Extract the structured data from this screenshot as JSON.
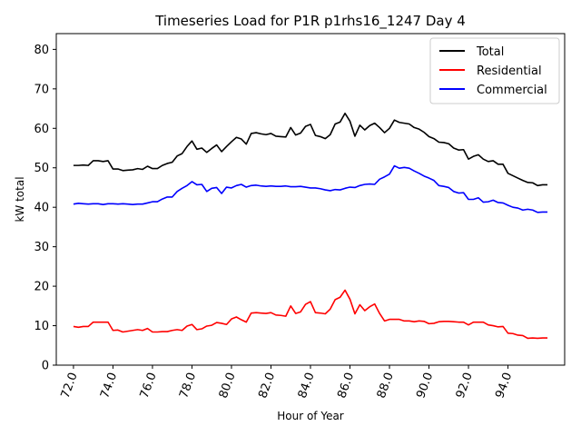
{
  "chart_data": {
    "type": "line",
    "title": "Timeseries Load for P1R p1rhs16_1247  Day 4",
    "xlabel": "Hour of Year",
    "ylabel": "kW total",
    "xlim": [
      71.13,
      96.87
    ],
    "ylim": [
      0,
      84
    ],
    "x_ticks": [
      72,
      74,
      76,
      78,
      80,
      82,
      84,
      86,
      88,
      90,
      92,
      94
    ],
    "x_tick_labels": [
      "72.0",
      "74.0",
      "76.0",
      "78.0",
      "80.0",
      "82.0",
      "84.0",
      "86.0",
      "88.0",
      "90.0",
      "92.0",
      "94.0"
    ],
    "y_ticks": [
      0,
      10,
      20,
      30,
      40,
      50,
      60,
      70,
      80
    ],
    "y_tick_labels": [
      "0",
      "10",
      "20",
      "30",
      "40",
      "50",
      "60",
      "70",
      "80"
    ],
    "grid": false,
    "legend_position": "top-right",
    "x": [
      72.0,
      72.25,
      72.5,
      72.75,
      73.0,
      73.25,
      73.5,
      73.75,
      74.0,
      74.25,
      74.5,
      74.75,
      75.0,
      75.25,
      75.5,
      75.75,
      76.0,
      76.25,
      76.5,
      76.75,
      77.0,
      77.25,
      77.5,
      77.75,
      78.0,
      78.25,
      78.5,
      78.75,
      79.0,
      79.25,
      79.5,
      79.75,
      80.0,
      80.25,
      80.5,
      80.75,
      81.0,
      81.25,
      81.5,
      81.75,
      82.0,
      82.25,
      82.5,
      82.75,
      83.0,
      83.25,
      83.5,
      83.75,
      84.0,
      84.25,
      84.5,
      84.75,
      85.0,
      85.25,
      85.5,
      85.75,
      86.0,
      86.25,
      86.5,
      86.75,
      87.0,
      87.25,
      87.5,
      87.75,
      88.0,
      88.25,
      88.5,
      88.75,
      89.0,
      89.25,
      89.5,
      89.75,
      90.0,
      90.25,
      90.5,
      90.75,
      91.0,
      91.25,
      91.5,
      91.75,
      92.0,
      92.25,
      92.5,
      92.75,
      93.0,
      93.25,
      93.5,
      93.75,
      94.0,
      94.25,
      94.5,
      94.75,
      95.0,
      95.25,
      95.5,
      95.75,
      96.0
    ],
    "series": [
      {
        "name": "Total",
        "color": "#000000",
        "values": [
          50.6,
          50.6,
          50.7,
          50.6,
          51.8,
          51.8,
          51.6,
          51.8,
          49.7,
          49.7,
          49.3,
          49.4,
          49.5,
          49.8,
          49.6,
          50.4,
          49.8,
          49.8,
          50.6,
          51.1,
          51.4,
          53.0,
          53.6,
          55.4,
          56.8,
          54.7,
          55.0,
          53.9,
          54.9,
          55.8,
          54.1,
          55.4,
          56.6,
          57.7,
          57.3,
          56.0,
          58.7,
          58.9,
          58.6,
          58.4,
          58.7,
          58.0,
          57.9,
          57.8,
          60.2,
          58.3,
          58.8,
          60.5,
          61.0,
          58.2,
          57.9,
          57.4,
          58.4,
          61.1,
          61.6,
          63.8,
          61.8,
          58.0,
          60.8,
          59.6,
          60.7,
          61.3,
          60.2,
          58.9,
          60.0,
          62.1,
          61.5,
          61.3,
          61.1,
          60.2,
          59.8,
          59.0,
          57.9,
          57.4,
          56.5,
          56.4,
          56.1,
          55.0,
          54.5,
          54.6,
          52.2,
          52.9,
          53.3,
          52.2,
          51.6,
          51.8,
          50.9,
          50.9,
          48.6,
          48.0,
          47.4,
          46.8,
          46.3,
          46.2,
          45.5,
          45.7,
          45.7
        ]
      },
      {
        "name": "Residential",
        "color": "#ff0000",
        "values": [
          9.8,
          9.6,
          9.8,
          9.8,
          10.9,
          10.9,
          10.9,
          10.9,
          8.8,
          8.9,
          8.4,
          8.6,
          8.8,
          9.0,
          8.8,
          9.3,
          8.4,
          8.4,
          8.5,
          8.5,
          8.8,
          9.0,
          8.8,
          9.9,
          10.3,
          9.0,
          9.2,
          9.9,
          10.1,
          10.8,
          10.6,
          10.3,
          11.7,
          12.2,
          11.5,
          10.9,
          13.2,
          13.3,
          13.2,
          13.1,
          13.3,
          12.7,
          12.6,
          12.4,
          15.0,
          13.1,
          13.5,
          15.4,
          16.1,
          13.3,
          13.2,
          13.0,
          14.2,
          16.6,
          17.2,
          19.0,
          16.7,
          13.0,
          15.3,
          13.8,
          14.8,
          15.5,
          13.1,
          11.2,
          11.6,
          11.6,
          11.6,
          11.2,
          11.2,
          11.0,
          11.2,
          11.1,
          10.5,
          10.6,
          11.0,
          11.1,
          11.1,
          11.0,
          10.9,
          10.9,
          10.2,
          10.9,
          10.9,
          10.9,
          10.2,
          10.0,
          9.7,
          9.8,
          8.1,
          8.0,
          7.6,
          7.5,
          6.8,
          6.9,
          6.8,
          6.9,
          6.9
        ]
      },
      {
        "name": "Commercial",
        "color": "#0000ff",
        "values": [
          40.8,
          41.0,
          40.9,
          40.8,
          40.9,
          40.9,
          40.7,
          40.9,
          40.9,
          40.8,
          40.9,
          40.8,
          40.7,
          40.8,
          40.8,
          41.1,
          41.4,
          41.4,
          42.1,
          42.6,
          42.6,
          44.0,
          44.8,
          45.5,
          46.5,
          45.7,
          45.8,
          44.0,
          44.8,
          45.0,
          43.5,
          45.1,
          44.9,
          45.5,
          45.8,
          45.1,
          45.5,
          45.6,
          45.4,
          45.3,
          45.4,
          45.3,
          45.3,
          45.4,
          45.2,
          45.2,
          45.3,
          45.1,
          44.9,
          44.9,
          44.7,
          44.4,
          44.2,
          44.5,
          44.4,
          44.8,
          45.1,
          45.0,
          45.5,
          45.8,
          45.9,
          45.8,
          47.1,
          47.7,
          48.4,
          50.5,
          49.9,
          50.1,
          49.9,
          49.2,
          48.6,
          47.9,
          47.4,
          46.8,
          45.5,
          45.3,
          45.0,
          44.0,
          43.6,
          43.7,
          42.0,
          42.0,
          42.4,
          41.3,
          41.4,
          41.8,
          41.2,
          41.1,
          40.5,
          40.0,
          39.8,
          39.3,
          39.5,
          39.3,
          38.7,
          38.8,
          38.8
        ]
      }
    ]
  }
}
